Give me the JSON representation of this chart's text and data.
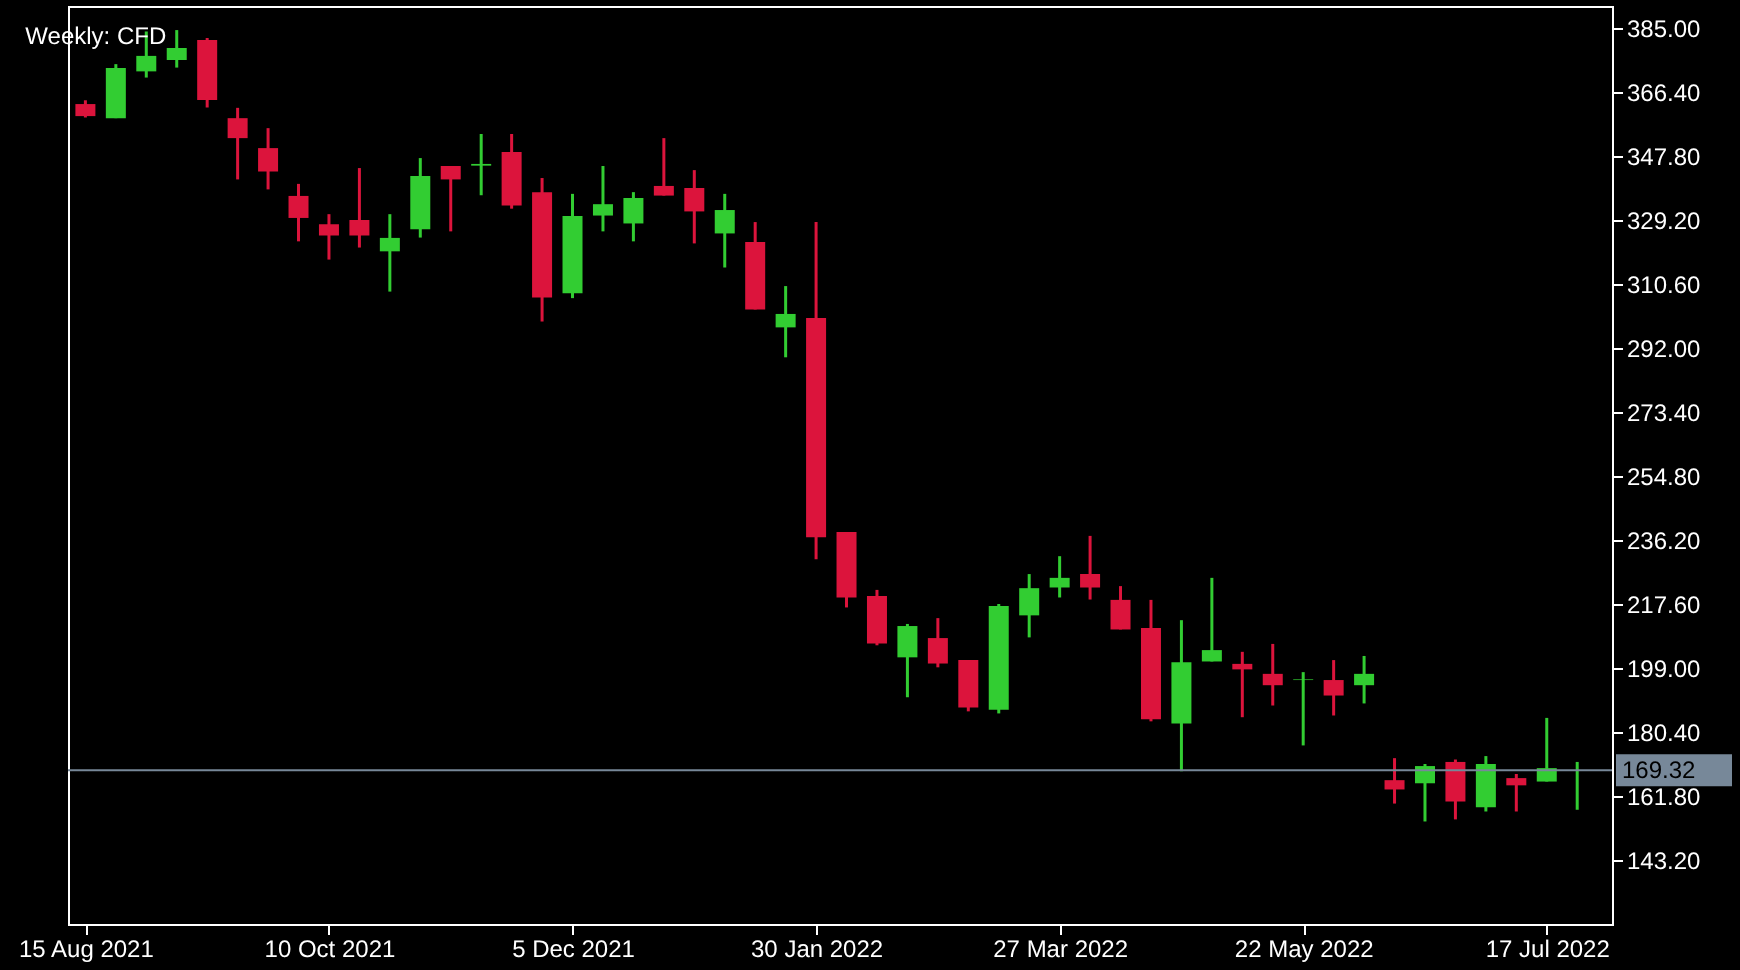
{
  "chart_data": {
    "type": "candlestick",
    "title": "Weekly: CFD",
    "x": [
      "2021-08-15",
      "2021-08-22",
      "2021-08-29",
      "2021-09-05",
      "2021-09-12",
      "2021-09-19",
      "2021-09-26",
      "2021-10-03",
      "2021-10-10",
      "2021-10-17",
      "2021-10-24",
      "2021-10-31",
      "2021-11-07",
      "2021-11-14",
      "2021-11-21",
      "2021-11-28",
      "2021-12-05",
      "2021-12-12",
      "2021-12-19",
      "2021-12-26",
      "2022-01-02",
      "2022-01-09",
      "2022-01-16",
      "2022-01-23",
      "2022-01-30",
      "2022-02-06",
      "2022-02-13",
      "2022-02-20",
      "2022-02-27",
      "2022-03-06",
      "2022-03-13",
      "2022-03-20",
      "2022-03-27",
      "2022-04-03",
      "2022-04-10",
      "2022-04-17",
      "2022-04-24",
      "2022-05-01",
      "2022-05-08",
      "2022-05-15",
      "2022-05-22",
      "2022-05-29",
      "2022-06-05",
      "2022-06-12",
      "2022-06-19",
      "2022-06-26",
      "2022-07-03",
      "2022-07-10",
      "2022-07-17",
      "2022-07-24"
    ],
    "ohlc": [
      [
        362.9,
        364,
        359,
        359.4
      ],
      [
        358.8,
        374.5,
        358.8,
        373.4
      ],
      [
        372.4,
        384,
        370.6,
        376.9
      ],
      [
        375.7,
        384.4,
        373.5,
        379.2
      ],
      [
        381.5,
        382.1,
        361.9,
        364.1
      ],
      [
        358.8,
        361.8,
        341,
        353
      ],
      [
        350.1,
        355.9,
        338.1,
        343.3
      ],
      [
        336.2,
        339.7,
        323,
        329.8
      ],
      [
        328,
        330.9,
        317.7,
        324.7
      ],
      [
        329.2,
        344.3,
        321.2,
        324.7
      ],
      [
        320.1,
        330.9,
        308.4,
        324
      ],
      [
        326.5,
        347.2,
        324.1,
        342
      ],
      [
        344.9,
        344.9,
        325.9,
        341
      ],
      [
        345,
        354.2,
        336.4,
        345.5
      ],
      [
        349,
        354.2,
        332.5,
        333.4
      ],
      [
        337.3,
        341.4,
        299.7,
        306.7
      ],
      [
        307.9,
        336.8,
        306.5,
        330.4
      ],
      [
        330.5,
        344.9,
        325.9,
        333.8
      ],
      [
        328.2,
        337.3,
        323,
        335.6
      ],
      [
        339.1,
        353,
        336.3,
        336.3
      ],
      [
        338.5,
        343.7,
        322.4,
        331.7
      ],
      [
        325.3,
        336.8,
        315.4,
        332.1
      ],
      [
        322.8,
        328.6,
        303.2,
        303.2
      ],
      [
        298,
        310,
        289.3,
        301.9
      ],
      [
        300.7,
        328.6,
        230.6,
        237
      ],
      [
        238.5,
        238.5,
        216.6,
        219.5
      ],
      [
        219.9,
        221.7,
        205.6,
        206.1
      ],
      [
        202.1,
        211.8,
        190.5,
        211.2
      ],
      [
        207.7,
        213.5,
        199.2,
        200.3
      ],
      [
        201.3,
        201.3,
        186.4,
        187.5
      ],
      [
        186.9,
        217.6,
        185.8,
        217
      ],
      [
        214.3,
        226.3,
        207.9,
        222.2
      ],
      [
        222.4,
        231.5,
        219.5,
        225.2
      ],
      [
        226.3,
        237.4,
        218.9,
        222.4
      ],
      [
        218.8,
        222.8,
        210.2,
        210.2
      ],
      [
        210.6,
        218.8,
        183.5,
        184.1
      ],
      [
        182.9,
        212.9,
        169,
        200.7
      ],
      [
        200.9,
        225.2,
        200.9,
        204.2
      ],
      [
        200.2,
        203.7,
        184.7,
        198.6
      ],
      [
        197.3,
        206,
        188.1,
        194
      ],
      [
        195.5,
        197.8,
        176.5,
        195.7
      ],
      [
        195.5,
        201.3,
        185.2,
        191
      ],
      [
        194,
        202.5,
        188.7,
        197.3
      ],
      [
        166.4,
        172.8,
        159.6,
        163.7
      ],
      [
        165.5,
        171.1,
        154.4,
        170.5
      ],
      [
        171.7,
        172.4,
        155,
        160.2
      ],
      [
        158.5,
        173.4,
        157.3,
        171.1
      ],
      [
        167,
        168.2,
        157.3,
        164.9
      ],
      [
        166,
        184.5,
        166,
        169.9
      ],
      [
        169.1,
        171.7,
        157.8,
        169.32
      ]
    ],
    "colors": [
      "#dc143c",
      "#32cd32",
      "#32cd32",
      "#32cd32",
      "#dc143c",
      "#dc143c",
      "#dc143c",
      "#dc143c",
      "#dc143c",
      "#dc143c",
      "#32cd32",
      "#32cd32",
      "#dc143c",
      "#32cd32",
      "#dc143c",
      "#dc143c",
      "#32cd32",
      "#32cd32",
      "#32cd32",
      "#dc143c",
      "#dc143c",
      "#32cd32",
      "#dc143c",
      "#32cd32",
      "#dc143c",
      "#dc143c",
      "#dc143c",
      "#32cd32",
      "#dc143c",
      "#dc143c",
      "#32cd32",
      "#32cd32",
      "#32cd32",
      "#dc143c",
      "#dc143c",
      "#dc143c",
      "#32cd32",
      "#32cd32",
      "#dc143c",
      "#dc143c",
      "#32cd32",
      "#dc143c",
      "#32cd32",
      "#dc143c",
      "#32cd32",
      "#dc143c",
      "#32cd32",
      "#dc143c",
      "#32cd32",
      "#32cd32"
    ],
    "xlim": [
      "2021-08-11",
      "2022-08-01"
    ],
    "xticks": [
      {
        "value": "2021-08-15",
        "label": "15 Aug 2021"
      },
      {
        "value": "2021-10-10",
        "label": "10 Oct 2021"
      },
      {
        "value": "2021-12-05",
        "label": "5 Dec 2021"
      },
      {
        "value": "2022-01-30",
        "label": "30 Jan 2022"
      },
      {
        "value": "2022-03-27",
        "label": "27 Mar 2022"
      },
      {
        "value": "2022-05-22",
        "label": "22 May 2022"
      },
      {
        "value": "2022-07-17",
        "label": "17 Jul 2022"
      }
    ],
    "ylim": [
      124.6,
      391.4
    ],
    "yticks": [
      {
        "value": 385,
        "label": "385.00"
      },
      {
        "value": 366.4,
        "label": "366.40"
      },
      {
        "value": 347.8,
        "label": "347.80"
      },
      {
        "value": 329.2,
        "label": "329.20"
      },
      {
        "value": 310.6,
        "label": "310.60"
      },
      {
        "value": 292,
        "label": "292.00"
      },
      {
        "value": 273.4,
        "label": "273.40"
      },
      {
        "value": 254.8,
        "label": "254.80"
      },
      {
        "value": 236.2,
        "label": "236.20"
      },
      {
        "value": 217.6,
        "label": "217.60"
      },
      {
        "value": 199,
        "label": "199.00"
      },
      {
        "value": 180.4,
        "label": "180.40"
      },
      {
        "value": 161.8,
        "label": "161.80"
      },
      {
        "value": 143.2,
        "label": "143.20"
      }
    ],
    "ref_lines": [
      {
        "axis": "y",
        "value": 169.32,
        "label": "169.32",
        "color": "#778899"
      }
    ],
    "grid": false
  }
}
